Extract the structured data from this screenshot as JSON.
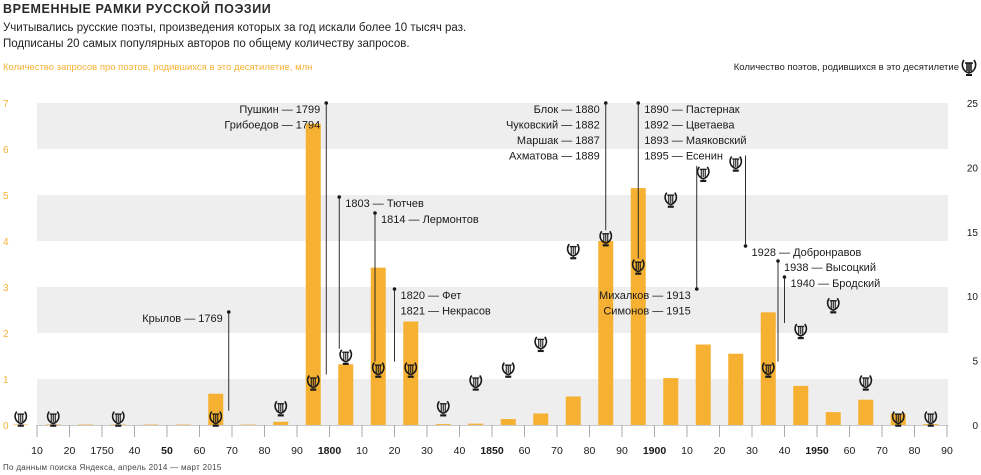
{
  "header": {
    "title": "Временные рамки русской поэзии",
    "subtitle_1": "Учитывались русские поэты, произведения которых за год искали более 10 тысяч раз.",
    "subtitle_2": "Подписаны 20 самых популярных авторов по общему количеству запросов."
  },
  "left_axis_label": "Количество запросов про поэтов, родившихся в это десятилетие, млн",
  "right_axis_label": "Количество поэтов, родившихся в это десятилетие",
  "source": "По данным поиска Яндекса, апрель 2014 — март 2015",
  "colors": {
    "bar": "#f6b133",
    "left_axis": "#f6b133",
    "band": "#eeeeee",
    "ink": "#1a1a1a"
  },
  "icon": "lyre-icon",
  "chart_data": {
    "type": "bar",
    "x_tick_labels": [
      "10",
      "20",
      "1750",
      "40",
      "50",
      "60",
      "70",
      "80",
      "90",
      "1800",
      "10",
      "20",
      "30",
      "40",
      "1850",
      "60",
      "70",
      "80",
      "90",
      "1900",
      "10",
      "20",
      "30",
      "40",
      "1950",
      "60",
      "70",
      "80",
      "90"
    ],
    "x_tick_years": [
      1710,
      1720,
      1730,
      1740,
      1750,
      1760,
      1770,
      1780,
      1790,
      1800,
      1810,
      1820,
      1830,
      1840,
      1850,
      1860,
      1870,
      1880,
      1890,
      1900,
      1910,
      1920,
      1930,
      1940,
      1950,
      1960,
      1970,
      1980,
      1990
    ],
    "bold_years": [
      1750,
      1800,
      1850,
      1900,
      1950
    ],
    "y_left_ticks": [
      0,
      1,
      2,
      3,
      4,
      5,
      6,
      7
    ],
    "ylim_left": [
      0,
      7
    ],
    "y_right_ticks": [
      0,
      5,
      10,
      15,
      20,
      25
    ],
    "ylim_right": [
      0,
      25
    ],
    "decades": [
      1700,
      1710,
      1720,
      1730,
      1740,
      1750,
      1760,
      1770,
      1780,
      1790,
      1800,
      1810,
      1820,
      1830,
      1840,
      1850,
      1860,
      1870,
      1880,
      1890,
      1900,
      1910,
      1920,
      1930,
      1940,
      1950,
      1960,
      1970,
      1980
    ],
    "queries_mln": [
      0.01,
      0.01,
      0.01,
      0.01,
      0.01,
      0.01,
      0.68,
      0.01,
      0.07,
      6.55,
      1.32,
      3.42,
      2.25,
      0.02,
      0.03,
      0.13,
      0.25,
      0.62,
      4.0,
      5.15,
      1.02,
      1.75,
      1.55,
      2.45,
      0.85,
      0.28,
      0.55,
      0.25,
      0.02
    ],
    "poets_count": [
      0.5,
      0.5,
      0,
      0.5,
      0,
      0,
      0.5,
      0,
      1.3,
      3.3,
      5.3,
      4.3,
      4.3,
      1.3,
      3.3,
      4.3,
      6.3,
      13.5,
      14.5,
      12.3,
      17.5,
      19.5,
      20.3,
      4.3,
      7.3,
      9.3,
      3.3,
      0.5,
      0.5
    ],
    "annotations": [
      {
        "year": 1769,
        "lines": [
          "Крылов — 1769"
        ],
        "align": "left"
      },
      {
        "year": 1799,
        "lines": [
          "Пушкин — 1799",
          "Грибоедов — 1794"
        ],
        "align": "left"
      },
      {
        "year": 1803,
        "lines": [
          "1803 — Тютчев"
        ],
        "align": "right"
      },
      {
        "year": 1814,
        "lines": [
          "1814 — Лермонтов"
        ],
        "align": "right"
      },
      {
        "year": 1820,
        "lines": [
          "1820 — Фет",
          "1821 — Некрасов"
        ],
        "align": "right"
      },
      {
        "year": 1885,
        "lines": [
          "Блок — 1880",
          "Чуковский — 1882",
          "Маршак — 1887",
          "Ахматова — 1889"
        ],
        "align": "left"
      },
      {
        "year": 1895,
        "lines": [
          "1890 — Пастернак",
          "1892 — Цветаева",
          "1893 — Маяковский",
          "1895 — Есенин"
        ],
        "align": "right"
      },
      {
        "year": 1913,
        "lines": [
          "Михалков — 1913",
          "Симонов — 1915"
        ],
        "align": "left"
      },
      {
        "year": 1928,
        "lines": [
          "1928 — Добронравов"
        ],
        "align": "right"
      },
      {
        "year": 1938,
        "lines": [
          "1938 — Высоцкий"
        ],
        "align": "right"
      },
      {
        "year": 1940,
        "lines": [
          "1940 — Бродский"
        ],
        "align": "right"
      }
    ]
  }
}
